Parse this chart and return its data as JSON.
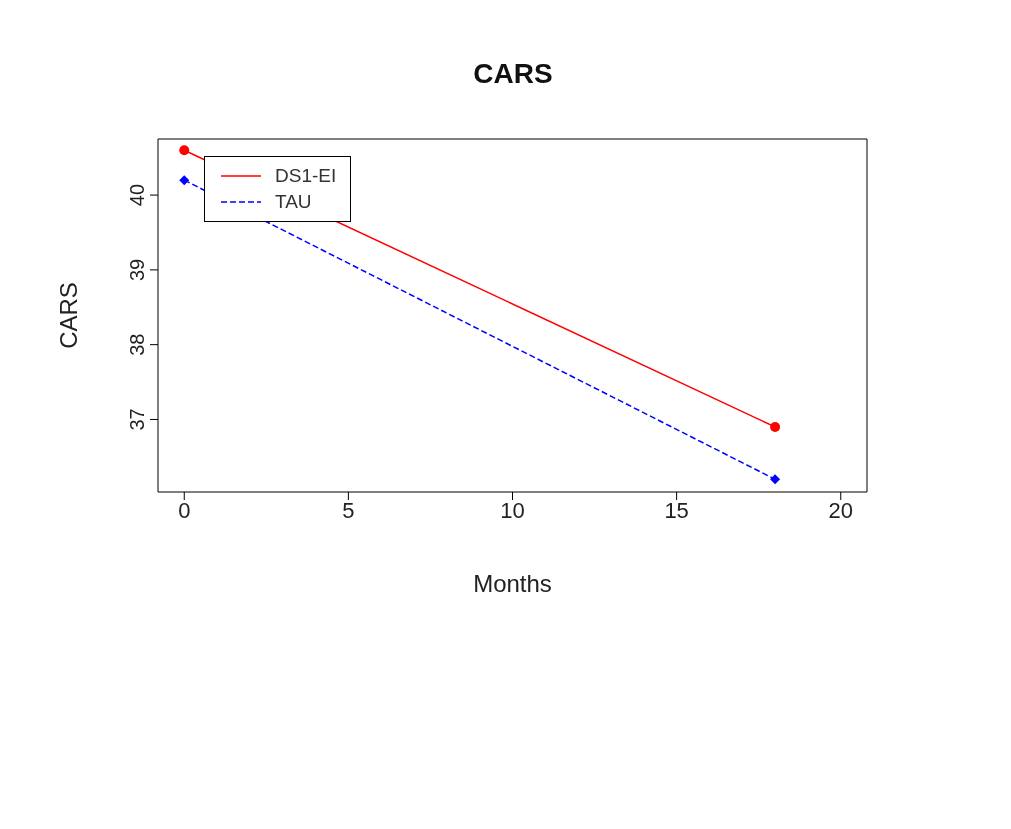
{
  "chart_data": {
    "type": "line",
    "title": "CARS",
    "xlabel": "Months",
    "ylabel": "CARS",
    "x": [
      0,
      18
    ],
    "series": [
      {
        "name": "DS1-EI",
        "color": "#ff0000",
        "values": [
          40.6,
          36.9
        ],
        "marker": "circle",
        "line_style": "solid"
      },
      {
        "name": "TAU",
        "color": "#0000ff",
        "values": [
          40.2,
          36.2
        ],
        "marker": "diamond",
        "line_style": "dashed"
      }
    ],
    "xlim": [
      -0.8,
      20.8
    ],
    "xticks": [
      0,
      5,
      10,
      15,
      20
    ],
    "ylim": [
      36.03,
      40.75
    ],
    "yticks": [
      37,
      38,
      39,
      40
    ],
    "grid": false,
    "legend": "top left"
  }
}
